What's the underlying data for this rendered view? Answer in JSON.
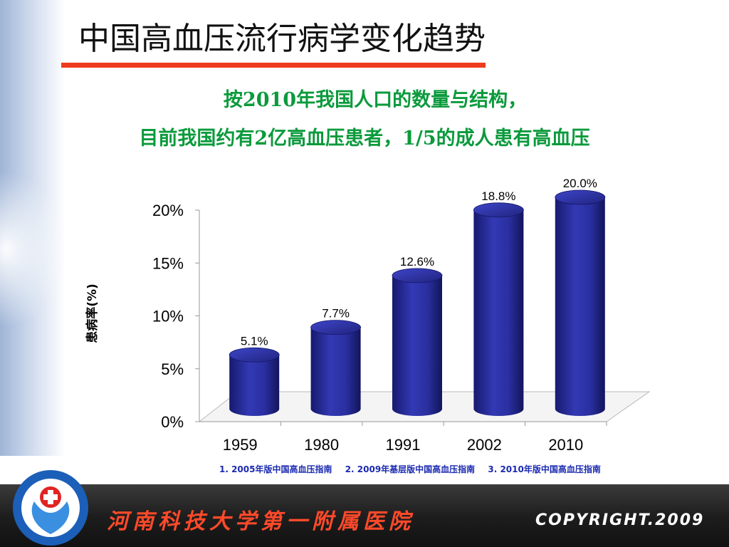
{
  "slide": {
    "title": "中国高血压流行病学变化趋势",
    "subtitle_line1": "按2010年我国人口的数量与结构，",
    "subtitle_line2": "目前我国约有2亿高血压患者，1/5的成人患有高血压"
  },
  "chart_data": {
    "type": "bar",
    "categories": [
      "1959",
      "1980",
      "1991",
      "2002",
      "2010"
    ],
    "values": [
      5.1,
      7.7,
      12.6,
      18.8,
      20.0
    ],
    "data_labels": [
      "5.1%",
      "7.7%",
      "12.6%",
      "18.8%",
      "20.0%"
    ],
    "ylabel": "患病率(%)",
    "ylim": [
      0,
      20
    ],
    "yticks": [
      {
        "value": 0,
        "label": "0%"
      },
      {
        "value": 5,
        "label": "5%"
      },
      {
        "value": 10,
        "label": "10%"
      },
      {
        "value": 15,
        "label": "15%"
      },
      {
        "value": 20,
        "label": "20%"
      }
    ],
    "bar_color": "#2a2fa0",
    "grid": false
  },
  "references": [
    "1. 2005年版中国高血压指南",
    "2. 2009年基层版中国高血压指南",
    "3. 2010年版中国高血压指南"
  ],
  "footer": {
    "institution": "河南科技大学第一附属医院",
    "copyright": "COPYRIGHT.2009"
  },
  "colors": {
    "title_rule": "#ee3b1e",
    "subtitle": "#0b9a3c",
    "references": "#1b2ab0",
    "footer_name": "#ff4a2a"
  }
}
